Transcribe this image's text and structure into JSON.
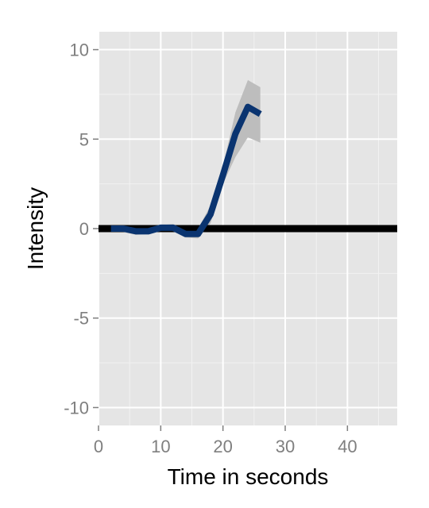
{
  "chart_data": {
    "type": "line",
    "title": "",
    "xlabel": "Time in seconds",
    "ylabel": "Intensity",
    "xlim": [
      0,
      48
    ],
    "ylim": [
      -11,
      11
    ],
    "x_ticks": [
      0,
      10,
      20,
      30,
      40
    ],
    "x_tick_labels": [
      "0",
      "10",
      "20",
      "30",
      "40"
    ],
    "y_ticks": [
      -10,
      -5,
      0,
      5,
      10
    ],
    "y_tick_labels": [
      "-10",
      "-5",
      "0",
      "5",
      "10"
    ],
    "grid": true,
    "reference_line": {
      "y": 0,
      "color": "#000000"
    },
    "series": [
      {
        "color": "#0a3470",
        "band_color": "#bdbdbd",
        "x": [
          2,
          4,
          6,
          8,
          10,
          12,
          14,
          16,
          18,
          20,
          22,
          24,
          26
        ],
        "y": [
          0.0,
          0.0,
          -0.15,
          -0.15,
          0.05,
          0.05,
          -0.3,
          -0.3,
          0.8,
          3.0,
          5.3,
          6.8,
          6.4
        ],
        "lower": [
          -0.15,
          -0.2,
          -0.35,
          -0.3,
          -0.1,
          -0.15,
          -0.5,
          -0.55,
          0.3,
          2.5,
          4.0,
          5.1,
          4.8
        ],
        "upper": [
          0.15,
          0.2,
          0.05,
          0.0,
          0.2,
          0.25,
          0.0,
          0.0,
          1.3,
          3.5,
          6.5,
          8.3,
          7.9
        ]
      }
    ]
  }
}
